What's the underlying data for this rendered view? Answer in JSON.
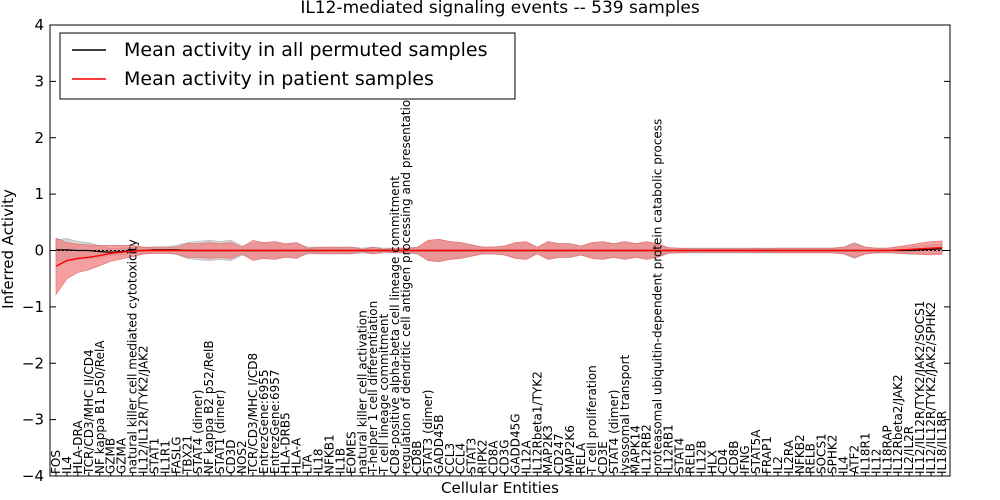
{
  "chart_data": {
    "type": "line",
    "title": "IL12-mediated signaling events -- 539 samples",
    "xlabel": "Cellular Entities",
    "ylabel": "Inferred Activity",
    "ylim": [
      -4,
      4
    ],
    "yticks": [
      "4",
      "3",
      "2",
      "1",
      "0",
      "−1",
      "−2",
      "−3",
      "−4"
    ],
    "ytick_values": [
      4,
      3,
      2,
      1,
      0,
      -1,
      -2,
      -3,
      -4
    ],
    "legend_position": "top-left",
    "legend": [
      {
        "name": "Mean activity in all permuted samples",
        "color": "#000000"
      },
      {
        "name": "Mean activity in patient samples",
        "color": "#ff0000"
      }
    ],
    "x": [
      "FOS",
      "IL4",
      "HLA-DRA",
      "TCR/CD3/MHC II/CD4",
      "NF kappa B1 p50/RelA",
      "GZMB",
      "GZMA",
      "natural killer cell mediated cytotoxicity",
      "IL12/IL12R/TYK2/JAK2",
      "STAT1",
      "IL1R1",
      "FASLG",
      "TBX21",
      "STAT4 (dimer)",
      "NF kappa B2 p52/RelB",
      "STAT1 (dimer)",
      "CD3D",
      "NOS2",
      "TCR/CD3/MHC I/CD8",
      "EntrezGene:6955",
      "EntrezGene:6957",
      "HLA-DRB5",
      "HLA-A",
      "LTA",
      "IL18",
      "NFKB1",
      "IL1B",
      "EOMES",
      "natural killer cell activation",
      "T-helper 1 cell differentiation",
      "T cell lineage commitment",
      "CD8-positive alpha-beta cell lineage commitment",
      "regulation of dendritic cell antigen processing and presentation",
      "CD8B",
      "STAT3 (dimer)",
      "GADD45B",
      "CCL3",
      "CCL4",
      "STAT3",
      "RIPK2",
      "CD8A",
      "CD3G",
      "GADD45G",
      "IL12A",
      "IL12Rbeta1/TYK2",
      "MAP2K3",
      "CD247",
      "MAP2K6",
      "RELA",
      "T cell proliferation",
      "CD3E",
      "STAT4 (dimer)",
      "lysosomal transport",
      "MAPK14",
      "IL12RB2",
      "proteasomal ubiquitin-dependent protein catabolic process",
      "IL12RB1",
      "STAT4",
      "RELB",
      "IL12B",
      "HLX",
      "CD4",
      "CD8B",
      "IFNG",
      "STAT5A",
      "FRAP1",
      "IL2",
      "IL2RA",
      "NFKB2",
      "RELB",
      "SOCS1",
      "SPHK2",
      "IL4",
      "ATF2",
      "IL18R1",
      "IL12",
      "IL18RAP",
      "IL12Rbeta2/JAK2",
      "IL2/IL2R",
      "IL12/IL12R/TYK2/JAK2/SOCS1",
      "IL12/IL12R/TYK2/JAK2/SPHK2",
      "IL18/IL18R"
    ],
    "series": [
      {
        "name": "Mean activity in all permuted samples",
        "color": "#000000",
        "values": [
          0.01,
          0.01,
          0.0,
          0.0,
          -0.02,
          -0.03,
          -0.02,
          0.0,
          0.0,
          0.01,
          0.01,
          0.01,
          0.0,
          0.0,
          0.0,
          0.0,
          0.0,
          0.0,
          0.0,
          0.0,
          0.0,
          0.0,
          0.0,
          0.0,
          0.0,
          0.0,
          0.0,
          0.0,
          0.0,
          0.0,
          0.0,
          0.0,
          0.0,
          0.0,
          0.0,
          0.0,
          0.0,
          0.0,
          0.0,
          0.0,
          0.0,
          0.0,
          0.0,
          0.0,
          0.0,
          0.0,
          0.0,
          0.0,
          0.0,
          0.0,
          0.0,
          0.0,
          0.0,
          0.0,
          0.0,
          0.0,
          0.0,
          0.0,
          0.0,
          0.0,
          0.0,
          0.0,
          0.0,
          0.0,
          0.0,
          0.0,
          0.0,
          0.0,
          0.0,
          0.0,
          0.0,
          0.0,
          0.0,
          0.0,
          0.0,
          0.0,
          0.0,
          0.0,
          0.0,
          0.01,
          0.02,
          0.03
        ]
      },
      {
        "name": "Mean activity in patient samples",
        "color": "#ff0000",
        "values": [
          -0.28,
          -0.18,
          -0.14,
          -0.12,
          -0.09,
          -0.05,
          -0.03,
          -0.01,
          0.0,
          0.0,
          0.0,
          0.0,
          0.0,
          0.0,
          0.0,
          0.0,
          0.0,
          0.0,
          0.0,
          0.0,
          0.0,
          0.0,
          0.0,
          0.0,
          0.0,
          0.0,
          0.0,
          0.0,
          0.0,
          0.0,
          0.0,
          0.0,
          0.0,
          0.0,
          0.0,
          0.0,
          0.0,
          0.0,
          0.0,
          0.0,
          0.0,
          0.0,
          0.0,
          0.0,
          0.0,
          0.0,
          0.0,
          0.0,
          0.0,
          0.0,
          0.0,
          0.0,
          0.0,
          0.0,
          0.0,
          0.0,
          0.0,
          0.0,
          0.0,
          0.0,
          0.0,
          0.0,
          0.0,
          0.0,
          0.0,
          0.0,
          0.0,
          0.0,
          0.0,
          0.0,
          0.0,
          0.0,
          0.0,
          0.0,
          0.0,
          0.0,
          0.0,
          0.01,
          0.02,
          0.03,
          0.04,
          0.05
        ]
      }
    ],
    "patient_band_halfwidth": [
      0.5,
      0.32,
      0.25,
      0.22,
      0.18,
      0.14,
      0.12,
      0.1,
      0.06,
      0.05,
      0.05,
      0.06,
      0.12,
      0.12,
      0.14,
      0.12,
      0.14,
      0.06,
      0.18,
      0.14,
      0.16,
      0.12,
      0.14,
      0.04,
      0.05,
      0.06,
      0.05,
      0.06,
      0.02,
      0.06,
      0.02,
      0.04,
      0.04,
      0.05,
      0.18,
      0.2,
      0.16,
      0.14,
      0.1,
      0.06,
      0.06,
      0.08,
      0.14,
      0.16,
      0.06,
      0.16,
      0.12,
      0.12,
      0.08,
      0.14,
      0.16,
      0.12,
      0.16,
      0.12,
      0.16,
      0.12,
      0.05,
      0.04,
      0.03,
      0.03,
      0.03,
      0.03,
      0.03,
      0.03,
      0.04,
      0.03,
      0.04,
      0.04,
      0.04,
      0.04,
      0.04,
      0.04,
      0.06,
      0.12,
      0.06,
      0.04,
      0.04,
      0.06,
      0.08,
      0.1,
      0.12,
      0.12
    ],
    "permuted_band_halfwidth": [
      0.18,
      0.2,
      0.16,
      0.14,
      0.1,
      0.06,
      0.06,
      0.06,
      0.05,
      0.06,
      0.06,
      0.08,
      0.14,
      0.16,
      0.18,
      0.16,
      0.18,
      0.08,
      0.14,
      0.12,
      0.14,
      0.1,
      0.12,
      0.06,
      0.06,
      0.06,
      0.06,
      0.06,
      0.04,
      0.06,
      0.04,
      0.04,
      0.04,
      0.06,
      0.16,
      0.18,
      0.16,
      0.14,
      0.1,
      0.06,
      0.06,
      0.08,
      0.12,
      0.14,
      0.06,
      0.14,
      0.12,
      0.12,
      0.08,
      0.12,
      0.14,
      0.12,
      0.14,
      0.12,
      0.14,
      0.1,
      0.05,
      0.04,
      0.04,
      0.04,
      0.04,
      0.04,
      0.04,
      0.04,
      0.04,
      0.04,
      0.04,
      0.04,
      0.04,
      0.04,
      0.04,
      0.04,
      0.06,
      0.14,
      0.06,
      0.04,
      0.04,
      0.05,
      0.06,
      0.07,
      0.08,
      0.08
    ],
    "colors": {
      "patient_line": "#ff0000",
      "patient_band": "#f08080",
      "permuted_line": "#000000",
      "permuted_band": "#c8c8c8",
      "zero_line": "#000000"
    }
  }
}
